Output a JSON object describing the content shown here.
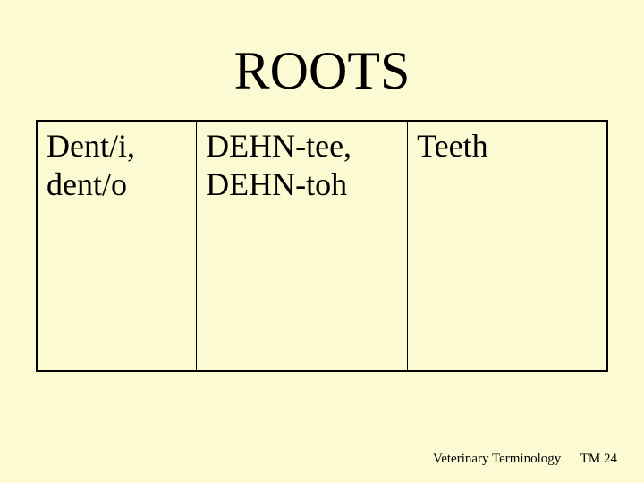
{
  "slide": {
    "title": "ROOTS",
    "background_color": "#fcfad3",
    "text_color": "#000000",
    "title_fontsize": 60,
    "cell_fontsize": 36,
    "footer_fontsize": 15
  },
  "table": {
    "border_color": "#000000",
    "columns": [
      {
        "width_pct": 28
      },
      {
        "width_pct": 37
      },
      {
        "width_pct": 35
      }
    ],
    "rows": [
      {
        "root": "Dent/i, dent/o",
        "pronunciation": "DEHN-tee, DEHN-toh",
        "meaning": "Teeth"
      }
    ]
  },
  "footer": {
    "label": "Veterinary Terminology",
    "page_prefix": "TM",
    "page_number": "24"
  }
}
